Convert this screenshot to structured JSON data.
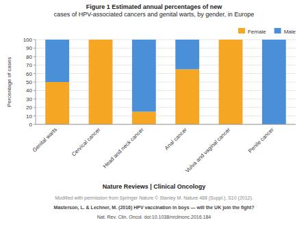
{
  "chart_data": {
    "type": "bar",
    "stacked": true,
    "title": "Figure 1 Estimated annual percentages of new\ncases of HPV-associated cancers and genital warts, by gender, in Europe",
    "y_label": "Percentage of cases",
    "categories": [
      "Genital warts",
      "Cervical cancer",
      "Head and neck cancer",
      "Anal cancer",
      "Vulva and vaginal cancer",
      "Penile cancer"
    ],
    "series": [
      {
        "name": "Female",
        "color": "#F5A623",
        "values": [
          50,
          100,
          15,
          65,
          100,
          0
        ]
      },
      {
        "name": "Male",
        "color": "#4A90D9",
        "values": [
          50,
          0,
          85,
          35,
          0,
          100
        ]
      }
    ],
    "ylim": [
      0,
      100
    ],
    "yticks": [
      0,
      10,
      20,
      30,
      40,
      50,
      60,
      70,
      80,
      90,
      100
    ],
    "grid": true,
    "legend": "upper right",
    "annotations": [
      "Nature Reviews | Clinical Oncology",
      "Modified with permission from Springer Nature © Stanley M. Nature 488 (Suppl.), S10 (2012).",
      "Masterson, L. & Lechner, M. (2016) HPV vaccination in boys — will the UK join the fight?",
      "Nat. Rev. Clin. Oncol. doi:10.1038/nrclinonc.2016.184"
    ]
  }
}
